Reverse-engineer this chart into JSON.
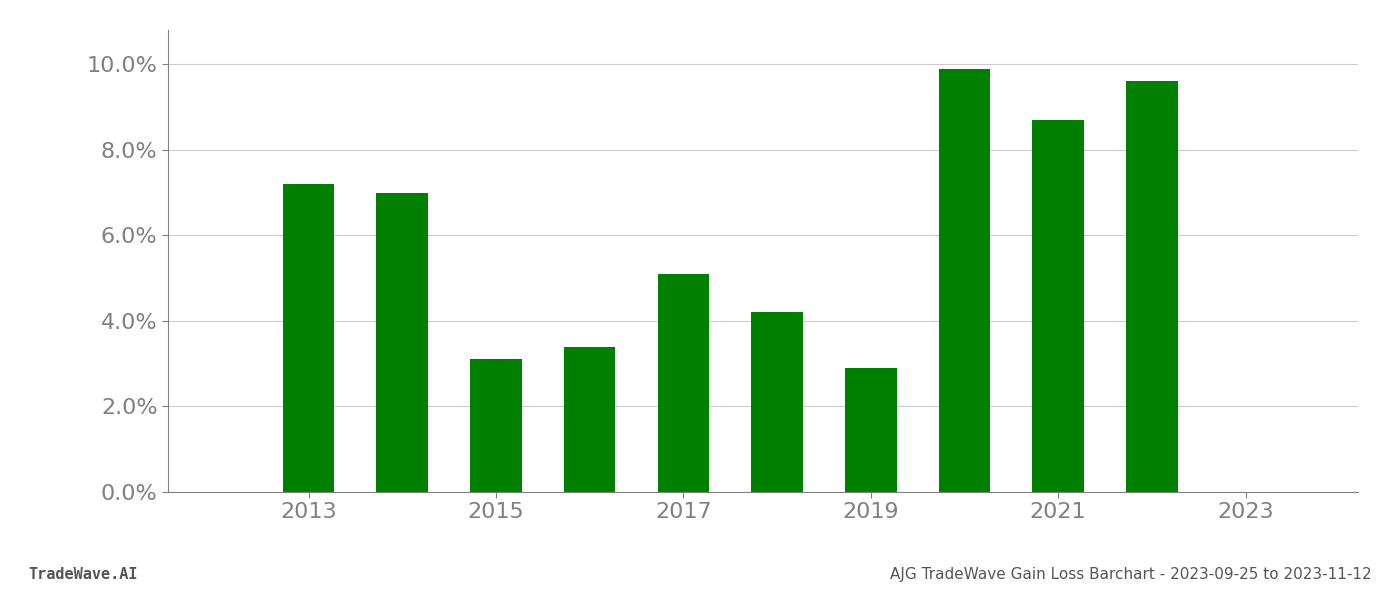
{
  "years": [
    2013,
    2014,
    2015,
    2016,
    2017,
    2018,
    2019,
    2020,
    2021,
    2022
  ],
  "values": [
    0.072,
    0.07,
    0.031,
    0.034,
    0.051,
    0.042,
    0.029,
    0.099,
    0.087,
    0.096
  ],
  "bar_color": "#008000",
  "background_color": "#ffffff",
  "ylim": [
    0,
    0.108
  ],
  "yticks": [
    0.0,
    0.02,
    0.04,
    0.06,
    0.08,
    0.1
  ],
  "grid_color": "#cccccc",
  "tick_color": "#808080",
  "spine_color": "#808080",
  "footer_left": "TradeWave.AI",
  "footer_right": "AJG TradeWave Gain Loss Barchart - 2023-09-25 to 2023-11-12",
  "footer_color": "#555555",
  "footer_fontsize": 11,
  "tick_fontsize": 16,
  "bar_width": 0.55,
  "xlim_left": 2011.5,
  "xlim_right": 2024.2
}
